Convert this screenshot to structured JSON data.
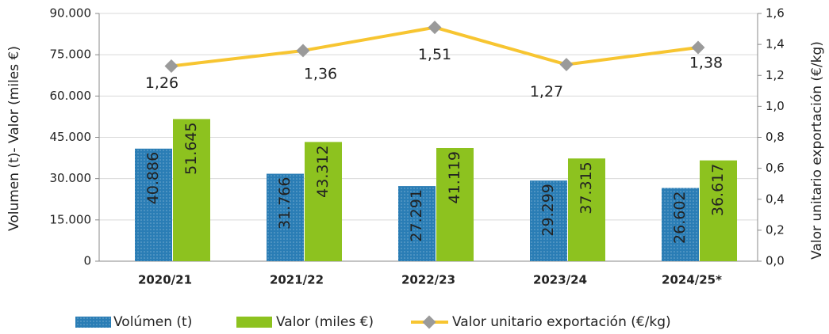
{
  "chart_data": {
    "type": "bar-line",
    "categories": [
      "2020/21",
      "2021/22",
      "2022/23",
      "2023/24",
      "2024/25*"
    ],
    "series": [
      {
        "name": "Volúmen (t)",
        "color": "#2a7db5",
        "type": "bar",
        "values": [
          40886,
          31766,
          27291,
          29299,
          26602
        ],
        "value_labels": [
          "40.886",
          "31.766",
          "27.291",
          "29.299",
          "26.602"
        ]
      },
      {
        "name": "Valor (miles €)",
        "color": "#8dc21f",
        "type": "bar",
        "values": [
          51645,
          43312,
          41119,
          37315,
          36617
        ],
        "value_labels": [
          "51.645",
          "43.312",
          "41.119",
          "37.315",
          "36.617"
        ]
      },
      {
        "name": "Valor unitario exportación (€/kg)",
        "color": "#f7c531",
        "marker_color": "#9a9a9a",
        "type": "line",
        "axis": "y2",
        "values": [
          1.26,
          1.36,
          1.51,
          1.27,
          1.38
        ],
        "value_labels": [
          "1,26",
          "1,36",
          "1,51",
          "1,27",
          "1,38"
        ]
      }
    ],
    "ylabel": "Volumen (t)- Valor (miles €)",
    "y2label": "Valor unitario exportación (€/kg)",
    "ylim": [
      0,
      90000
    ],
    "yticks": [
      0,
      {
        "value": 15000,
        "label": "15.000"
      },
      {
        "value": 30000,
        "label": "30.000"
      },
      {
        "value": 45000,
        "label": "45.000"
      },
      {
        "value": 60000,
        "label": "60.000"
      },
      {
        "value": 75000,
        "label": "75.000"
      },
      {
        "value": 90000,
        "label": "90.000"
      }
    ],
    "y2lim": [
      0,
      1.6
    ],
    "y2ticks": [
      {
        "value": 0,
        "label": "0,0"
      },
      {
        "value": 0.2,
        "label": "0,2"
      },
      {
        "value": 0.4,
        "label": "0,4"
      },
      {
        "value": 0.6,
        "label": "0,6"
      },
      {
        "value": 0.8,
        "label": "0,8"
      },
      {
        "value": 1.0,
        "label": "1,0"
      },
      {
        "value": 1.2,
        "label": "1,2"
      },
      {
        "value": 1.4,
        "label": "1,4"
      },
      {
        "value": 1.6,
        "label": "1,6"
      }
    ],
    "grid": true,
    "legend": "bottom"
  }
}
